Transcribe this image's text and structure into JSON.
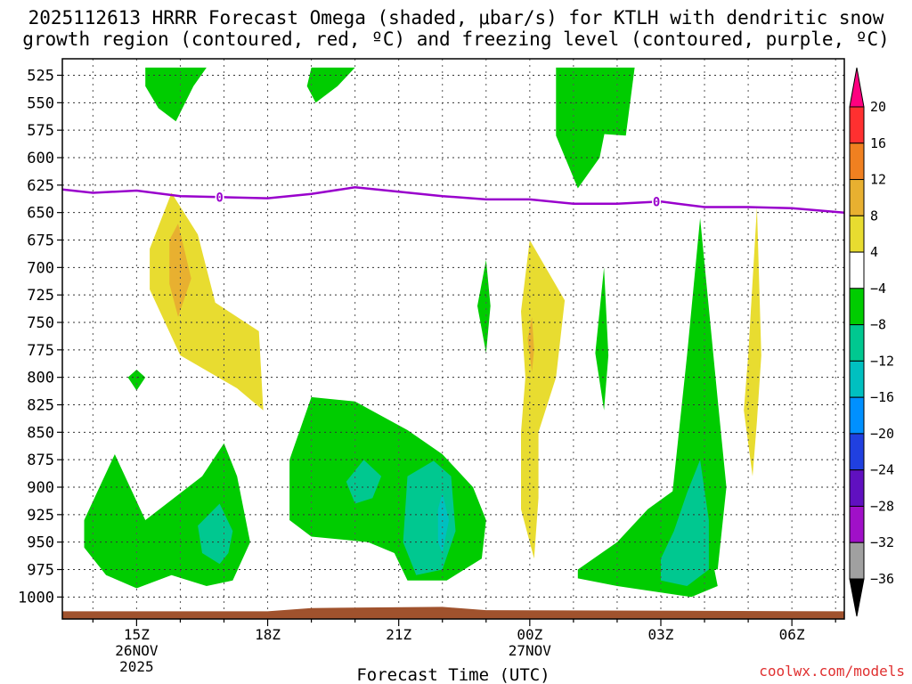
{
  "chart_data": {
    "type": "heatmap",
    "title_line1": "2025112613 HRRR Forecast Omega (shaded, μbar/s) for KTLH with dendritic snow",
    "title_line2": "growth region (contoured, red, ºC) and freezing level (contoured, purple, ºC)",
    "xlabel": "Forecast Time (UTC)",
    "y_ticks": [
      525,
      550,
      575,
      600,
      625,
      650,
      675,
      700,
      725,
      750,
      775,
      800,
      825,
      850,
      875,
      900,
      925,
      950,
      975,
      1000
    ],
    "ylim": [
      1020,
      510
    ],
    "xlim": [
      13.3,
      31.2
    ],
    "x_ticks": [
      {
        "hour": 15,
        "label": "15Z",
        "date": "26NOV",
        "year": "2025"
      },
      {
        "hour": 18,
        "label": "18Z",
        "date": "",
        "year": ""
      },
      {
        "hour": 21,
        "label": "21Z",
        "date": "",
        "year": ""
      },
      {
        "hour": 24,
        "label": "00Z",
        "date": "27NOV",
        "year": ""
      },
      {
        "hour": 27,
        "label": "03Z",
        "date": "",
        "year": ""
      },
      {
        "hour": 30,
        "label": "06Z",
        "date": "",
        "year": ""
      }
    ],
    "freezing_level": {
      "label": "0",
      "label_hours": [
        16.9,
        26.9
      ],
      "x": [
        13.3,
        14.0,
        15.0,
        16.0,
        17.0,
        18.0,
        19.0,
        20.0,
        21.0,
        22.0,
        23.0,
        24.0,
        25.0,
        26.0,
        27.0,
        28.0,
        29.0,
        30.0,
        31.2
      ],
      "y": [
        629,
        632,
        630,
        635,
        636,
        637,
        633,
        627,
        631,
        635,
        638,
        638,
        642,
        642,
        640,
        645,
        645,
        646,
        650
      ]
    },
    "terrain": {
      "x": [
        13.3,
        18.0,
        19.0,
        22.0,
        23.0,
        31.2
      ],
      "y": [
        1013,
        1013,
        1010,
        1009,
        1012,
        1013
      ]
    },
    "colorbar": {
      "labels": [
        "20",
        "16",
        "12",
        "8",
        "4",
        "−4",
        "−8",
        "−12",
        "−16",
        "−20",
        "−24",
        "−28",
        "−32",
        "−36"
      ],
      "colors": [
        "#ff0080",
        "#ff3030",
        "#f08020",
        "#e8b030",
        "#e8dc30",
        "#ffffff",
        "#00cc00",
        "#00c890",
        "#00c0c0",
        "#0090ff",
        "#2040e0",
        "#6010c0",
        "#a010c8",
        "#a0a0a0",
        "#000000"
      ]
    },
    "regions": [
      {
        "name": "green-15z-top",
        "cls": "g",
        "pts": [
          [
            15.2,
            518
          ],
          [
            16.6,
            518
          ],
          [
            16.3,
            535
          ],
          [
            15.9,
            567
          ],
          [
            15.5,
            555
          ],
          [
            15.2,
            535
          ]
        ]
      },
      {
        "name": "green-19z-top",
        "cls": "g",
        "pts": [
          [
            19.0,
            518
          ],
          [
            20.0,
            518
          ],
          [
            19.6,
            535
          ],
          [
            19.1,
            550
          ],
          [
            18.9,
            535
          ]
        ]
      },
      {
        "name": "green-0130z-top",
        "cls": "g",
        "pts": [
          [
            24.6,
            518
          ],
          [
            25.5,
            518
          ],
          [
            25.8,
            560
          ],
          [
            25.6,
            600
          ],
          [
            25.1,
            628
          ],
          [
            24.6,
            580
          ]
        ]
      },
      {
        "name": "green-0230z-top",
        "cls": "g",
        "pts": [
          [
            25.5,
            518
          ],
          [
            26.4,
            518
          ],
          [
            26.2,
            580
          ],
          [
            25.5,
            578
          ]
        ]
      },
      {
        "name": "yellow-1530z-block",
        "cls": "y",
        "pts": [
          [
            15.3,
            683
          ],
          [
            15.8,
            632
          ],
          [
            16.4,
            670
          ],
          [
            16.8,
            732
          ],
          [
            17.8,
            758
          ],
          [
            17.9,
            830
          ],
          [
            17.3,
            810
          ],
          [
            16.0,
            780
          ],
          [
            15.3,
            720
          ]
        ]
      },
      {
        "name": "orange-16z-core",
        "cls": "o",
        "pts": [
          [
            15.75,
            675
          ],
          [
            15.95,
            660
          ],
          [
            16.25,
            710
          ],
          [
            15.95,
            745
          ],
          [
            15.75,
            715
          ]
        ]
      },
      {
        "name": "green-15z-dot",
        "cls": "g",
        "pts": [
          [
            14.8,
            800
          ],
          [
            15.0,
            793
          ],
          [
            15.2,
            800
          ],
          [
            15.0,
            812
          ]
        ]
      },
      {
        "name": "yellow-0015z-column",
        "cls": "y",
        "pts": [
          [
            23.8,
            740
          ],
          [
            24.0,
            675
          ],
          [
            24.8,
            730
          ],
          [
            24.6,
            800
          ],
          [
            24.2,
            850
          ],
          [
            24.2,
            910
          ],
          [
            24.1,
            965
          ],
          [
            23.8,
            920
          ],
          [
            23.8,
            850
          ],
          [
            23.9,
            800
          ]
        ]
      },
      {
        "name": "orange-0015z-core",
        "cls": "o",
        "pts": [
          [
            23.95,
            765
          ],
          [
            24.05,
            745
          ],
          [
            24.1,
            775
          ],
          [
            24.05,
            795
          ]
        ]
      },
      {
        "name": "green-2245z-sliver",
        "cls": "g",
        "pts": [
          [
            22.8,
            735
          ],
          [
            23.0,
            693
          ],
          [
            23.1,
            735
          ],
          [
            23.0,
            778
          ]
        ]
      },
      {
        "name": "green-0145z-column",
        "cls": "g",
        "pts": [
          [
            25.5,
            778
          ],
          [
            25.7,
            700
          ],
          [
            25.8,
            780
          ],
          [
            25.7,
            830
          ]
        ]
      },
      {
        "name": "green-0345z-column",
        "cls": "g",
        "pts": [
          [
            27.6,
            780
          ],
          [
            27.9,
            655
          ],
          [
            28.3,
            820
          ],
          [
            28.5,
            900
          ],
          [
            28.3,
            975
          ],
          [
            27.5,
            970
          ],
          [
            27.2,
            930
          ]
        ]
      },
      {
        "name": "yellow-0445z-column",
        "cls": "y",
        "pts": [
          [
            29.0,
            780
          ],
          [
            29.2,
            645
          ],
          [
            29.3,
            780
          ],
          [
            29.2,
            840
          ],
          [
            29.1,
            890
          ],
          [
            28.9,
            830
          ]
        ]
      },
      {
        "name": "green-0330z-low",
        "cls": "g",
        "pts": [
          [
            25.1,
            975
          ],
          [
            26.0,
            950
          ],
          [
            26.7,
            920
          ],
          [
            27.4,
            900
          ],
          [
            28.0,
            930
          ],
          [
            28.3,
            990
          ],
          [
            27.7,
            1000
          ],
          [
            26.0,
            990
          ],
          [
            25.1,
            983
          ]
        ]
      },
      {
        "name": "teal-0345z-low",
        "cls": "t",
        "pts": [
          [
            27.0,
            965
          ],
          [
            27.3,
            940
          ],
          [
            27.6,
            905
          ],
          [
            27.9,
            875
          ],
          [
            28.1,
            930
          ],
          [
            28.1,
            975
          ],
          [
            27.6,
            990
          ],
          [
            27.0,
            985
          ]
        ]
      },
      {
        "name": "green-1530z-low",
        "cls": "g",
        "pts": [
          [
            13.8,
            930
          ],
          [
            14.5,
            870
          ],
          [
            15.2,
            930
          ],
          [
            16.5,
            890
          ],
          [
            17.0,
            860
          ],
          [
            17.3,
            890
          ],
          [
            17.6,
            950
          ],
          [
            17.2,
            985
          ],
          [
            16.6,
            990
          ],
          [
            15.8,
            980
          ],
          [
            15.0,
            992
          ],
          [
            14.3,
            980
          ],
          [
            13.8,
            955
          ]
        ]
      },
      {
        "name": "teal-1630z-low",
        "cls": "t",
        "pts": [
          [
            16.4,
            935
          ],
          [
            16.9,
            915
          ],
          [
            17.2,
            940
          ],
          [
            17.1,
            960
          ],
          [
            16.9,
            970
          ],
          [
            16.5,
            960
          ]
        ]
      },
      {
        "name": "green-2130z-low",
        "cls": "g",
        "pts": [
          [
            18.5,
            875
          ],
          [
            19.0,
            818
          ],
          [
            20.0,
            822
          ],
          [
            21.2,
            848
          ],
          [
            22.0,
            870
          ],
          [
            22.7,
            900
          ],
          [
            23.0,
            930
          ],
          [
            22.9,
            965
          ],
          [
            22.1,
            985
          ],
          [
            21.2,
            985
          ],
          [
            20.9,
            960
          ],
          [
            20.3,
            950
          ],
          [
            19.0,
            945
          ],
          [
            18.5,
            930
          ]
        ]
      },
      {
        "name": "teal-2030z-mid",
        "cls": "t",
        "pts": [
          [
            19.8,
            895
          ],
          [
            20.2,
            875
          ],
          [
            20.6,
            890
          ],
          [
            20.4,
            910
          ],
          [
            20.0,
            915
          ]
        ]
      },
      {
        "name": "teal-2200z-low",
        "cls": "t",
        "pts": [
          [
            21.2,
            890
          ],
          [
            21.8,
            876
          ],
          [
            22.2,
            890
          ],
          [
            22.3,
            940
          ],
          [
            22.0,
            975
          ],
          [
            21.4,
            980
          ],
          [
            21.1,
            950
          ]
        ]
      },
      {
        "name": "cyan-2200z-core",
        "cls": "c",
        "pts": [
          [
            21.9,
            920
          ],
          [
            22.0,
            905
          ],
          [
            22.15,
            930
          ],
          [
            22.0,
            960
          ],
          [
            21.9,
            950
          ]
        ]
      }
    ],
    "credit": "coolwx.com/models"
  }
}
